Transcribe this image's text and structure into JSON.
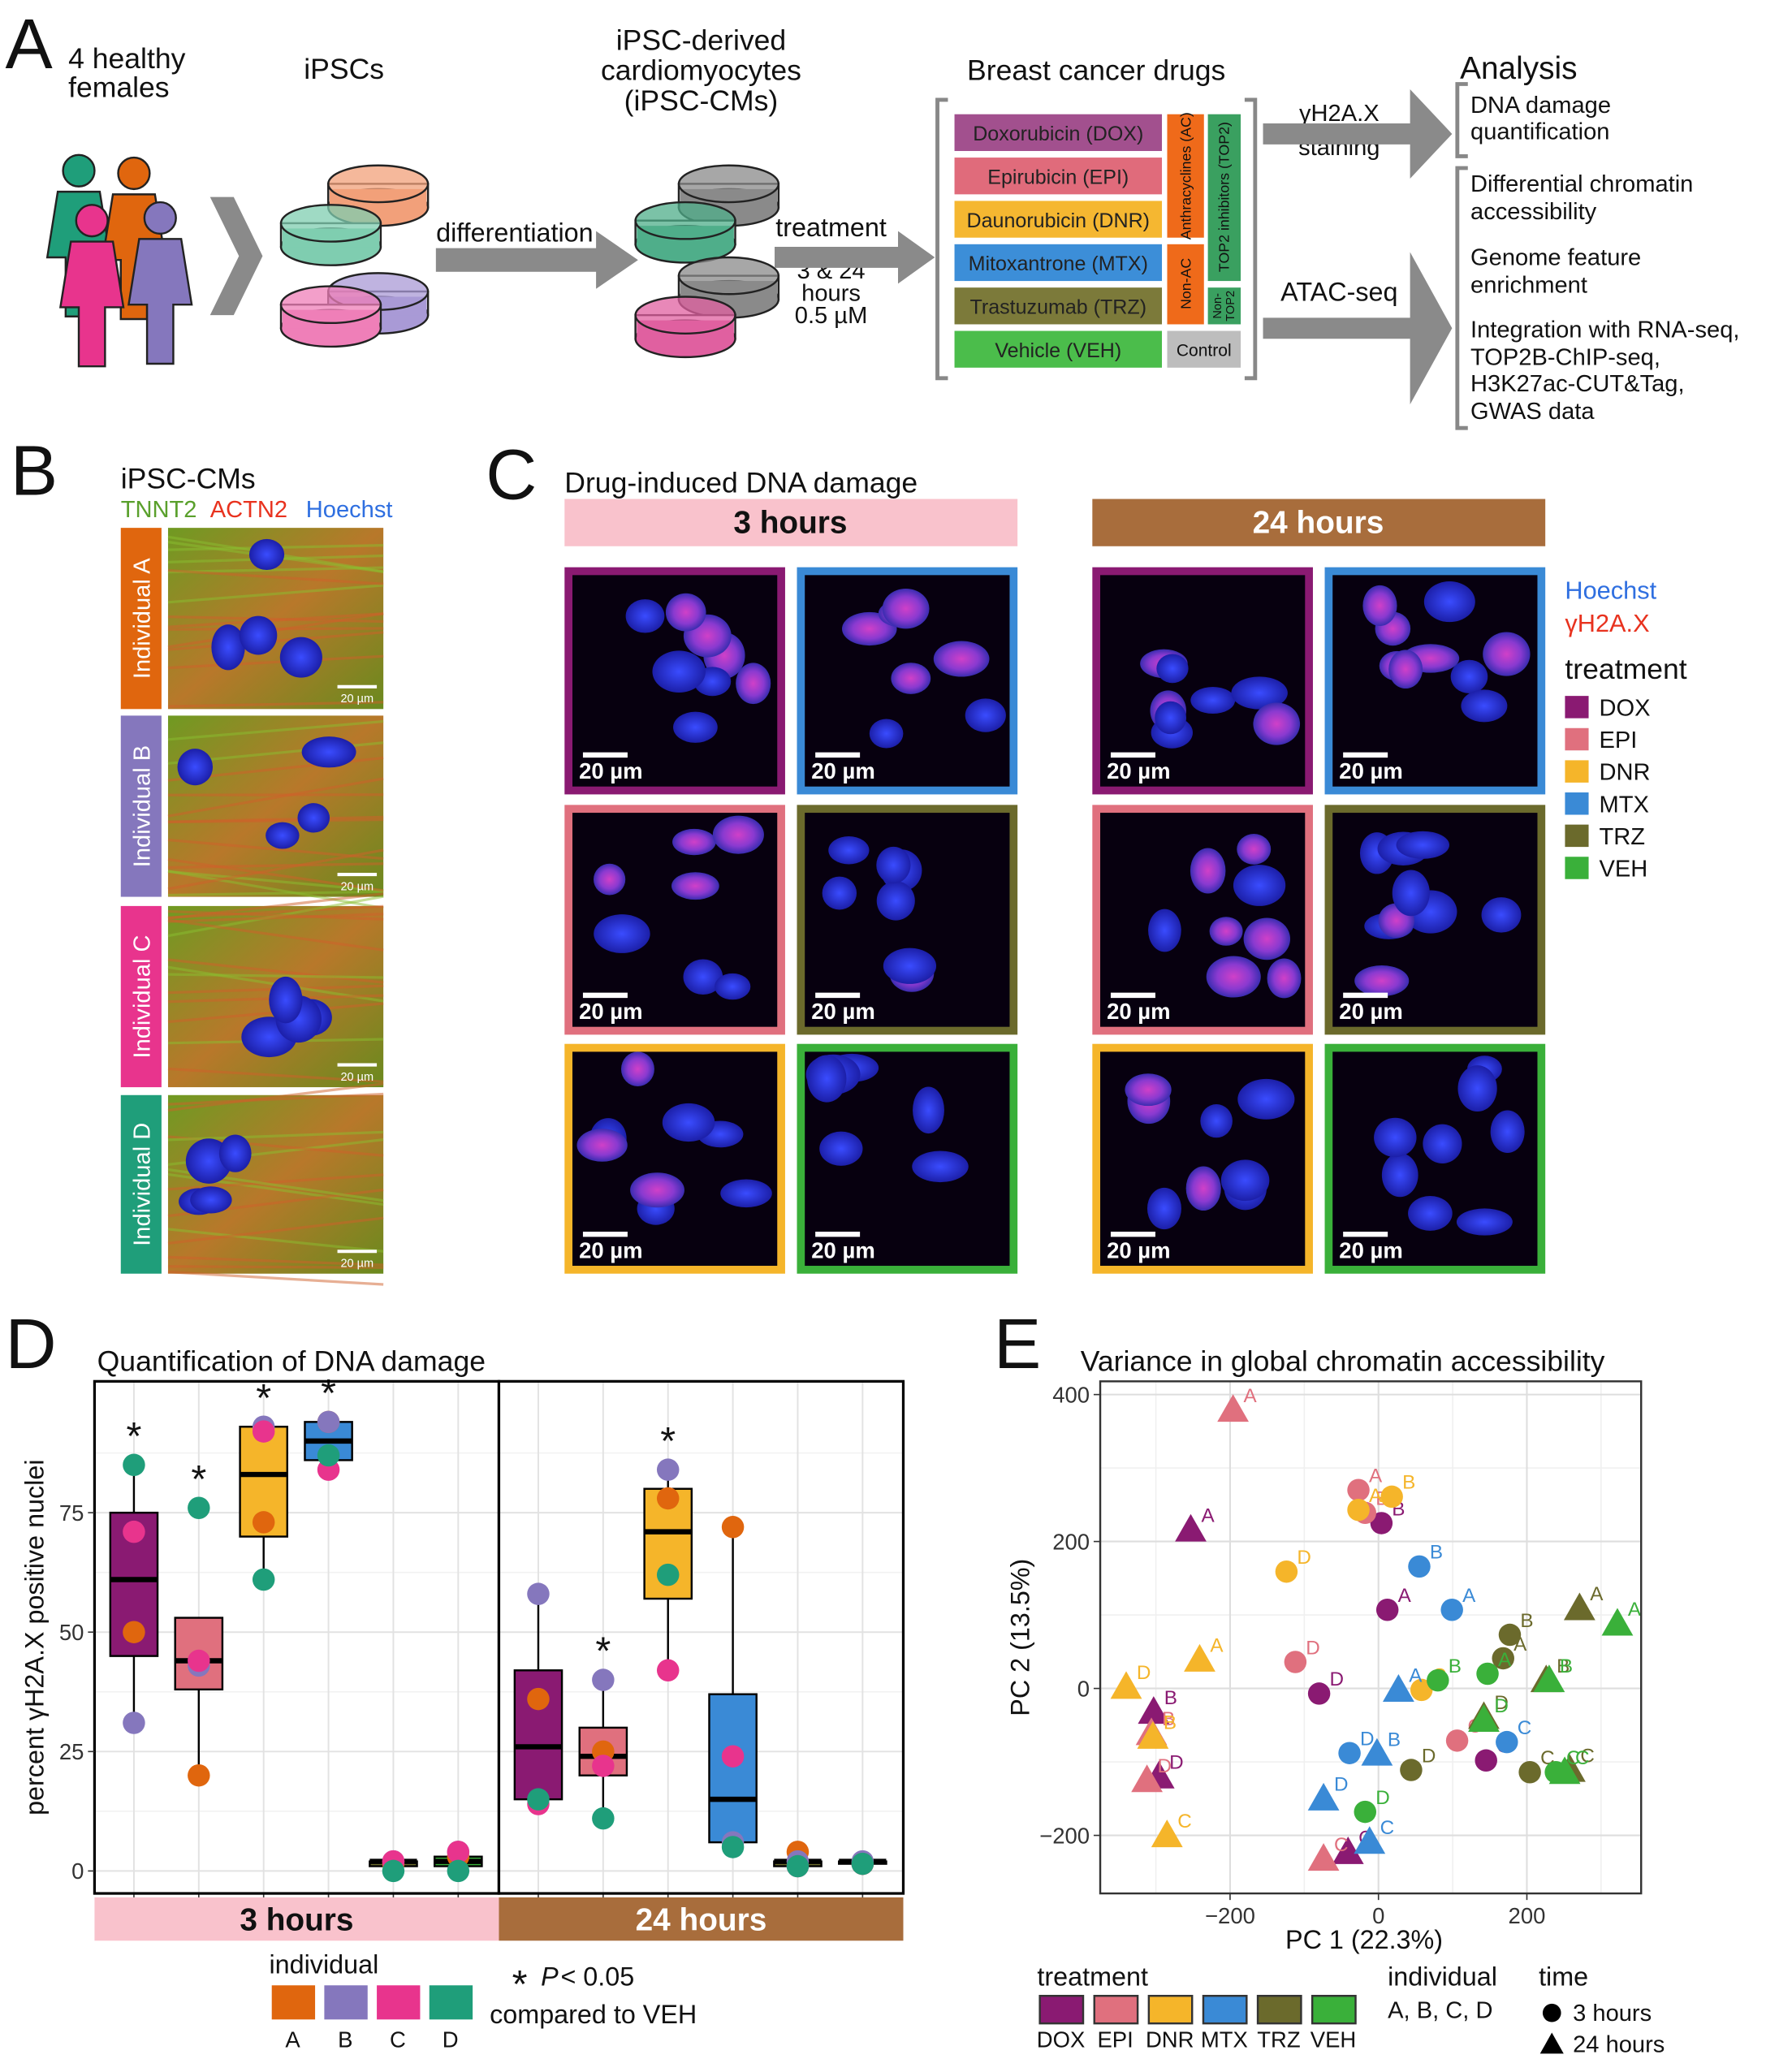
{
  "panel_a": {
    "letter": "A",
    "donors": [
      "4 healthy",
      "females"
    ],
    "ipscs": "iPSCs",
    "differentiation": "differentiation",
    "cms": [
      "iPSC-derived",
      "cardiomyocytes",
      "(iPSC-CMs)"
    ],
    "treatment": [
      "treatment",
      "3 & 24",
      "hours",
      "0.5 µM"
    ],
    "drugs_title": "Breast cancer drugs",
    "drugs": [
      {
        "name": "Doxorubicin (DOX)",
        "color": "#a2508e"
      },
      {
        "name": "Epirubicin (EPI)",
        "color": "#e06b7b"
      },
      {
        "name": "Daunorubicin (DNR)",
        "color": "#f5b731"
      },
      {
        "name": "Mitoxantrone (MTX)",
        "color": "#3c8ed8"
      },
      {
        "name": "Trastuzumab (TRZ)",
        "color": "#7c7a3a"
      },
      {
        "name": "Vehicle (VEH)",
        "color": "#4bbd4b"
      }
    ],
    "classes": {
      "ac": "Anthracyclines (AC)",
      "non_ac": "Non-AC",
      "top2": "TOP2 inhibitors (TOP2)",
      "non_top2": [
        "Non-",
        "TOP2"
      ],
      "control": "Control",
      "ac_color": "#ef6a1a",
      "top2_color": "#3aa060",
      "control_color": "#bdbdbd"
    },
    "staining": [
      "γH2A.X",
      "staining"
    ],
    "atac": "ATAC-seq",
    "analysis_title": "Analysis",
    "analysis": [
      [
        "DNA damage",
        "quantification"
      ],
      [
        "Differential chromatin",
        "accessibility"
      ],
      [
        "Genome feature",
        "enrichment"
      ],
      [
        "Integration with RNA-seq,",
        "TOP2B-ChIP-seq,",
        "H3K27ac-CUT&Tag,",
        "GWAS data"
      ]
    ]
  },
  "panel_b": {
    "letter": "B",
    "title": "iPSC-CMs",
    "stains": [
      {
        "name": "TNNT2",
        "color": "#5aa02c"
      },
      {
        "name": "ACTN2",
        "color": "#e8321e"
      },
      {
        "name": "Hoechst",
        "color": "#2f6fe0"
      }
    ],
    "individuals": [
      {
        "name": "Individual A",
        "color": "#e0660e"
      },
      {
        "name": "Individual B",
        "color": "#8577bd"
      },
      {
        "name": "Individual C",
        "color": "#e8348d"
      },
      {
        "name": "Individual D",
        "color": "#1f9e7a"
      }
    ],
    "scale": "20 µm"
  },
  "panel_c": {
    "letter": "C",
    "title": "Drug-induced DNA damage",
    "times": [
      {
        "label": "3 hours",
        "color": "#f9c2cc",
        "text_color": "#111111"
      },
      {
        "label": "24 hours",
        "color": "#a86d3c",
        "text_color": "#ffffff"
      }
    ],
    "frames": [
      [
        "#8a1a72",
        "#3a8ad6"
      ],
      [
        "#e0707e",
        "#6b6a2c"
      ],
      [
        "#f5b52a",
        "#3ab03a"
      ]
    ],
    "scale": "20 µm",
    "legend": {
      "stains": [
        {
          "name": "Hoechst",
          "color": "#2f6fe0"
        },
        {
          "name": "γH2A.X",
          "color": "#e8321e"
        }
      ],
      "title": "treatment",
      "items": [
        {
          "name": "DOX",
          "color": "#8a1a72"
        },
        {
          "name": "EPI",
          "color": "#e0707e"
        },
        {
          "name": "DNR",
          "color": "#f5b52a"
        },
        {
          "name": "MTX",
          "color": "#3a8ad6"
        },
        {
          "name": "TRZ",
          "color": "#6b6a2c"
        },
        {
          "name": "VEH",
          "color": "#3ab03a"
        }
      ]
    }
  },
  "chart_data": [
    {
      "type": "box",
      "letter": "D",
      "title": "Quantification of DNA damage",
      "ylabel": "percent γH2A.X positive nuclei",
      "ylim": [
        -4.7,
        102.5
      ],
      "yticks": [
        0,
        25,
        50,
        75
      ],
      "grid": true,
      "facets": [
        {
          "label": "3 hours",
          "color": "#f9c2cc",
          "text_color": "#111111",
          "boxes": [
            {
              "color": "#8a1a72",
              "whisker_low": 31,
              "q1": 45,
              "median": 61,
              "q3": 75,
              "whisker_high": 85,
              "points": [
                50,
                31,
                71,
                85
              ],
              "significant": true
            },
            {
              "color": "#e0707e",
              "whisker_low": 20,
              "q1": 38,
              "median": 44,
              "q3": 53,
              "whisker_high": 53,
              "points": [
                20,
                43,
                44,
                76
              ],
              "significant": true
            },
            {
              "color": "#f5b52a",
              "whisker_low": 61,
              "q1": 70,
              "median": 83,
              "q3": 93,
              "whisker_high": 93,
              "points": [
                73,
                93,
                92,
                61
              ],
              "significant": true
            },
            {
              "color": "#3a8ad6",
              "whisker_low": 84,
              "q1": 86,
              "median": 90,
              "q3": 94,
              "whisker_high": 94,
              "points": [
                94,
                94,
                84,
                87
              ],
              "significant": true
            },
            {
              "color": "#6b6a2c",
              "whisker_low": 0,
              "q1": 1,
              "median": 2,
              "q3": 2,
              "whisker_high": 2,
              "points": [
                1.5,
                2,
                2,
                0
              ],
              "significant": false
            },
            {
              "color": "#3ab03a",
              "whisker_low": 0,
              "q1": 1,
              "median": 2,
              "q3": 3,
              "whisker_high": 4,
              "points": [
                3,
                4,
                4,
                0
              ],
              "significant": false
            }
          ]
        },
        {
          "label": "24 hours",
          "color": "#a86d3c",
          "text_color": "#ffffff",
          "boxes": [
            {
              "color": "#8a1a72",
              "whisker_low": 14,
              "q1": 15,
              "median": 26,
              "q3": 42,
              "whisker_high": 58,
              "points": [
                36,
                58,
                14,
                15
              ],
              "significant": false
            },
            {
              "color": "#e0707e",
              "whisker_low": 11,
              "q1": 20,
              "median": 24,
              "q3": 30,
              "whisker_high": 40,
              "points": [
                25,
                40,
                22,
                11
              ],
              "significant": true
            },
            {
              "color": "#f5b52a",
              "whisker_low": 42,
              "q1": 57,
              "median": 71,
              "q3": 80,
              "whisker_high": 84,
              "points": [
                78,
                84,
                42,
                62
              ],
              "significant": true
            },
            {
              "color": "#3a8ad6",
              "whisker_low": 5,
              "q1": 6,
              "median": 15,
              "q3": 37,
              "whisker_high": 72,
              "points": [
                72,
                6,
                24,
                5
              ],
              "significant": false
            },
            {
              "color": "#6b6a2c",
              "whisker_low": 1,
              "q1": 1,
              "median": 2,
              "q3": 2,
              "whisker_high": 4,
              "points": [
                4,
                2,
                1,
                1
              ],
              "significant": false
            },
            {
              "color": "#3ab03a",
              "whisker_low": 1,
              "q1": 1.5,
              "median": 2,
              "q3": 2,
              "whisker_high": 2,
              "points": [
                1.5,
                2,
                1.5,
                1.5
              ],
              "significant": false
            }
          ]
        }
      ],
      "legend_title": "individual",
      "individuals": [
        {
          "name": "A",
          "color": "#e0660e"
        },
        {
          "name": "B",
          "color": "#8577bd"
        },
        {
          "name": "C",
          "color": "#e8348d"
        },
        {
          "name": "D",
          "color": "#1f9e7a"
        }
      ],
      "star": "*",
      "note": {
        "p": "P",
        "threshold": "< 0.05",
        "text": "compared to VEH"
      }
    },
    {
      "type": "scatter",
      "letter": "E",
      "title": "Variance in global chromatin accessibility",
      "xlabel": "PC 1 (22.3%)",
      "ylabel": "PC 2 (13.5%)",
      "xlim": [
        -375,
        354
      ],
      "ylim": [
        -279,
        418
      ],
      "xticks": [
        {
          "value": -200,
          "label": "−200"
        },
        0,
        200
      ],
      "yticks": [
        {
          "value": -200,
          "label": "−200"
        },
        0,
        200,
        400
      ],
      "grid": true,
      "series": [
        {
          "name": "DOX",
          "color": "#8a1a72",
          "x": [
            12,
            4,
            145,
            -80,
            -253,
            -303,
            -41,
            -296
          ],
          "y": [
            107,
            225,
            -98,
            -7,
            216,
            -32,
            -223,
            -120
          ],
          "labels": [
            "A",
            "B",
            "C",
            "D",
            "A",
            "B",
            "C",
            "D"
          ],
          "markers": [
            "circle",
            "circle",
            "circle",
            "circle",
            "triangle",
            "triangle",
            "triangle",
            "triangle"
          ]
        },
        {
          "name": "EPI",
          "color": "#e0707e",
          "x": [
            -27,
            -18,
            106,
            -112,
            -196,
            -306,
            -74,
            -312
          ],
          "y": [
            270,
            239,
            -71,
            36,
            379,
            -61,
            -232,
            -125
          ],
          "labels": [
            "A",
            "B",
            "C",
            "D",
            "A",
            "B",
            "C",
            "D"
          ],
          "markers": [
            "circle",
            "circle",
            "circle",
            "circle",
            "triangle",
            "triangle",
            "triangle",
            "triangle"
          ]
        },
        {
          "name": "DNR",
          "color": "#f5b52a",
          "x": [
            -27,
            18,
            58,
            -124,
            -241,
            -304,
            -285,
            -340
          ],
          "y": [
            243,
            261,
            -2,
            159,
            39,
            -66,
            -200,
            2
          ],
          "labels": [
            "A",
            "B",
            "C",
            "D",
            "A",
            "B",
            "C",
            "D"
          ],
          "markers": [
            "circle",
            "circle",
            "circle",
            "circle",
            "triangle",
            "triangle",
            "triangle",
            "triangle"
          ]
        },
        {
          "name": "MTX",
          "color": "#3a8ad6",
          "x": [
            99,
            55,
            173,
            -39,
            27,
            -2,
            -12,
            -74
          ],
          "y": [
            107,
            166,
            -73,
            -88,
            -2,
            -89,
            -209,
            -150
          ],
          "labels": [
            "A",
            "B",
            "C",
            "D",
            "A",
            "B",
            "C",
            "D"
          ],
          "markers": [
            "circle",
            "circle",
            "circle",
            "circle",
            "triangle",
            "triangle",
            "triangle",
            "triangle"
          ]
        },
        {
          "name": "TRZ",
          "color": "#6b6a2c",
          "x": [
            168,
            177,
            204,
            44,
            271,
            226,
            258,
            142
          ],
          "y": [
            41,
            73,
            -114,
            -111,
            109,
            11,
            -111,
            -39
          ],
          "labels": [
            "A",
            "B",
            "C",
            "D",
            "A",
            "B",
            "C",
            "D"
          ],
          "markers": [
            "circle",
            "circle",
            "circle",
            "circle",
            "triangle",
            "triangle",
            "triangle",
            "triangle"
          ]
        },
        {
          "name": "VEH",
          "color": "#3ab03a",
          "x": [
            147,
            80,
            239,
            -18,
            322,
            230,
            251,
            142
          ],
          "y": [
            20,
            11,
            -114,
            -168,
            88,
            11,
            -114,
            -43
          ],
          "labels": [
            "A",
            "B",
            "C",
            "D",
            "A",
            "B",
            "C",
            "D"
          ],
          "markers": [
            "circle",
            "circle",
            "circle",
            "circle",
            "triangle",
            "triangle",
            "triangle",
            "triangle"
          ]
        }
      ],
      "legend_titles": {
        "treatment": "treatment",
        "individual": "individual",
        "time": "time"
      },
      "individual_text": "A, B, C, D",
      "time_legend": [
        {
          "label": "3 hours",
          "marker": "circle"
        },
        {
          "label": "24 hours",
          "marker": "triangle"
        }
      ]
    }
  ]
}
